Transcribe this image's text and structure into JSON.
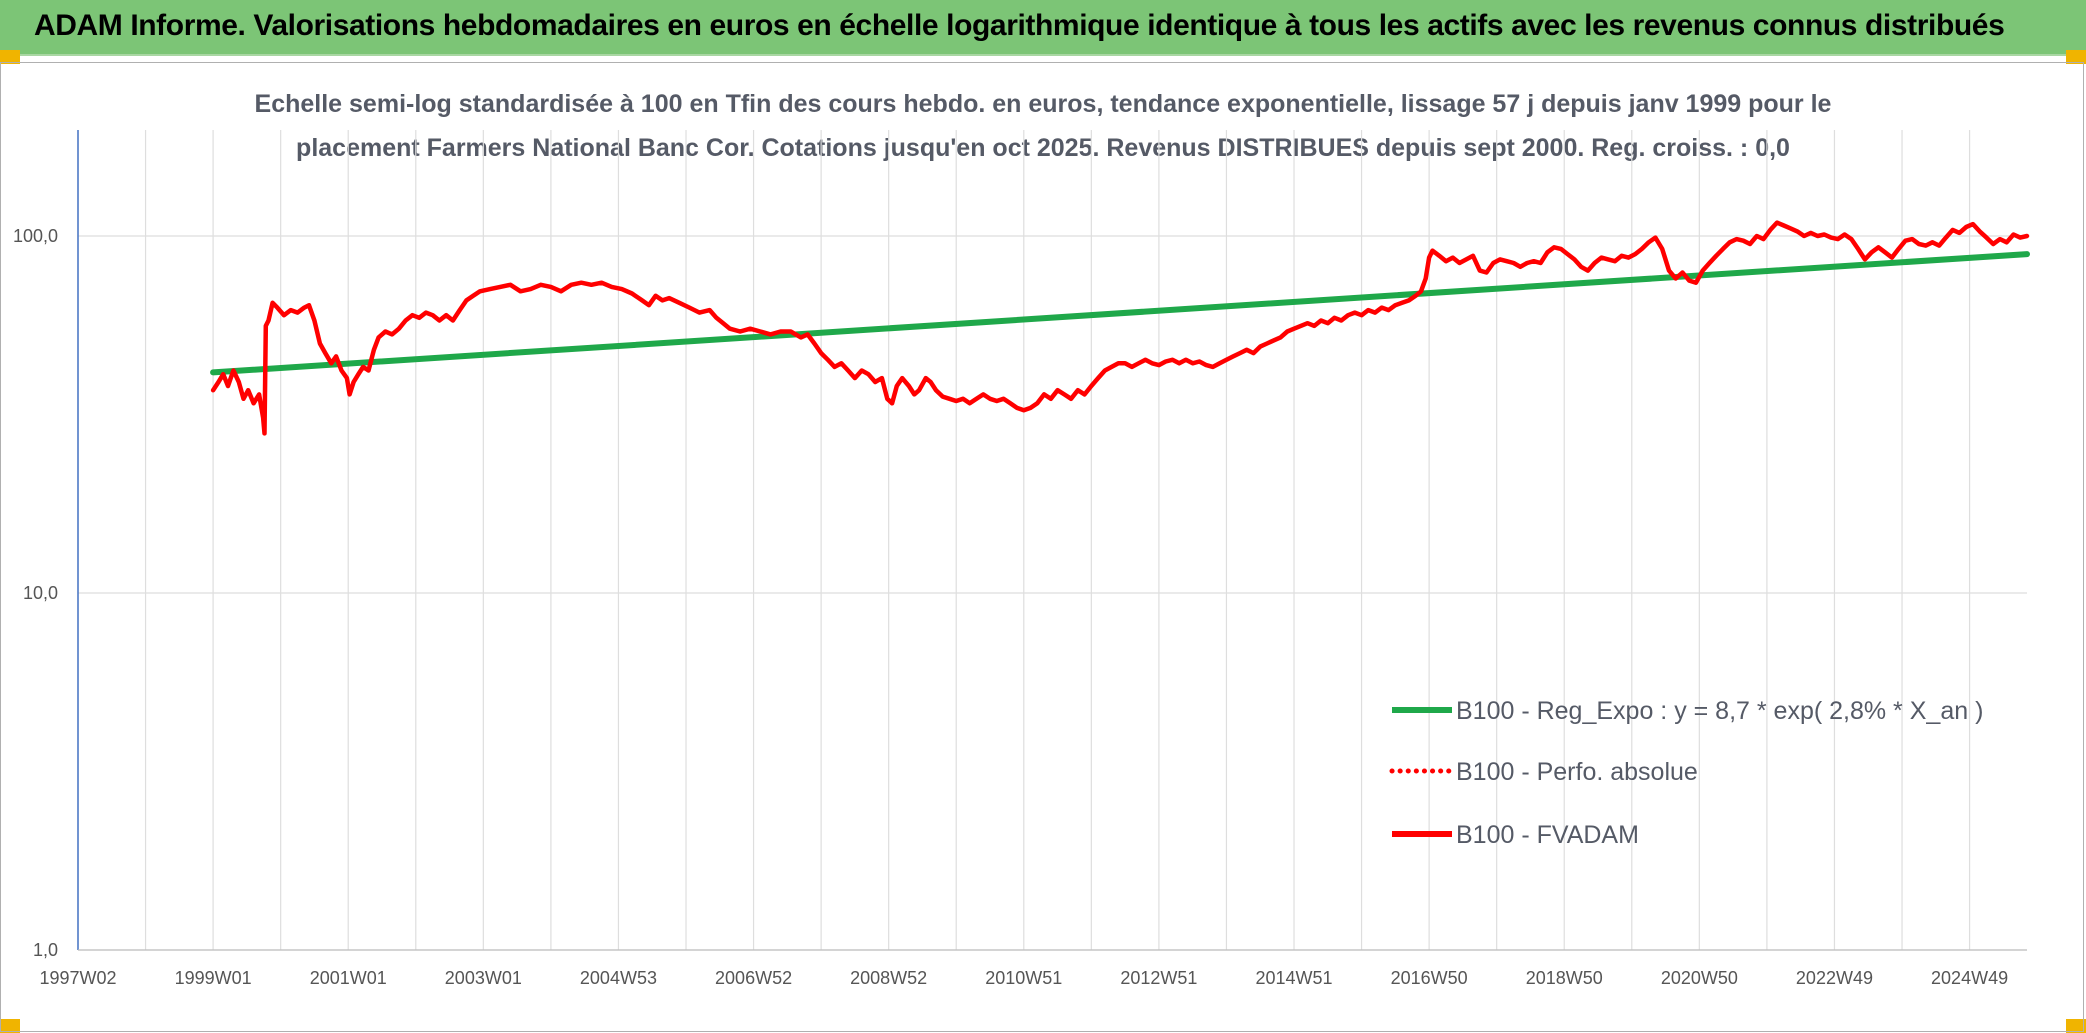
{
  "banner": {
    "title": "ADAM Informe. Valorisations hebdomadaires en euros en échelle logarithmique identique à tous les actifs avec les revenus connus distribués",
    "background_color": "#7cc576",
    "corner_color": "#f0b400"
  },
  "chart_data": {
    "type": "line",
    "title_line1": "Echelle semi-log standardisée à 100 en Tfin des cours hebdo. en euros, tendance exponentielle, lissage 57 j depuis janv 1999 pour le",
    "title_line2": "placement Farmers National Banc Cor. Cotations jusqu'en oct 2025. Revenus DISTRIBUES depuis sept 2000. Reg. croiss. : 0,0",
    "y_scale": "log",
    "ylim": [
      1,
      200
    ],
    "y_ticks": [
      {
        "value": 1,
        "label": "1,0"
      },
      {
        "value": 10,
        "label": "10,0"
      },
      {
        "value": 100,
        "label": "100,0"
      }
    ],
    "x_range": [
      1997.0,
      2025.85
    ],
    "x_ticks": [
      {
        "value": 1997.0,
        "label": "1997W02"
      },
      {
        "value": 1999.0,
        "label": "1999W01"
      },
      {
        "value": 2001.0,
        "label": "2001W01"
      },
      {
        "value": 2003.0,
        "label": "2003W01"
      },
      {
        "value": 2005.0,
        "label": "2004W53"
      },
      {
        "value": 2007.0,
        "label": "2006W52"
      },
      {
        "value": 2009.0,
        "label": "2008W52"
      },
      {
        "value": 2011.0,
        "label": "2010W51"
      },
      {
        "value": 2013.0,
        "label": "2012W51"
      },
      {
        "value": 2015.0,
        "label": "2014W51"
      },
      {
        "value": 2017.0,
        "label": "2016W50"
      },
      {
        "value": 2019.0,
        "label": "2018W50"
      },
      {
        "value": 2021.0,
        "label": "2020W50"
      },
      {
        "value": 2023.0,
        "label": "2022W49"
      },
      {
        "value": 2025.0,
        "label": "2024W49"
      }
    ],
    "grid": true,
    "legend_position": "bottom-right",
    "series": [
      {
        "name": "B100 - Reg_Expo : y = 8,7 * exp( 2,8% *  X_an )",
        "color": "#1fa84a",
        "style": "solid",
        "points": [
          [
            1999.0,
            41.5
          ],
          [
            2025.85,
            89.0
          ]
        ]
      },
      {
        "name": "B100 - Perfo. absolue",
        "color": "#ff0000",
        "style": "dotted",
        "points": []
      },
      {
        "name": "B100 - FVADAM",
        "color": "#ff0000",
        "style": "solid",
        "points": [
          [
            1999.0,
            37
          ],
          [
            1999.08,
            39
          ],
          [
            1999.15,
            41
          ],
          [
            1999.22,
            38
          ],
          [
            1999.3,
            42
          ],
          [
            1999.38,
            39
          ],
          [
            1999.45,
            35
          ],
          [
            1999.52,
            37
          ],
          [
            1999.6,
            34
          ],
          [
            1999.68,
            36
          ],
          [
            1999.74,
            31
          ],
          [
            1999.76,
            28
          ],
          [
            1999.78,
            56
          ],
          [
            1999.82,
            58
          ],
          [
            1999.88,
            65
          ],
          [
            1999.95,
            63
          ],
          [
            2000.05,
            60
          ],
          [
            2000.15,
            62
          ],
          [
            2000.25,
            61
          ],
          [
            2000.35,
            63
          ],
          [
            2000.42,
            64
          ],
          [
            2000.5,
            58
          ],
          [
            2000.58,
            50
          ],
          [
            2000.66,
            47
          ],
          [
            2000.75,
            44
          ],
          [
            2000.82,
            46
          ],
          [
            2000.9,
            42
          ],
          [
            2000.98,
            40
          ],
          [
            2001.02,
            36
          ],
          [
            2001.08,
            39
          ],
          [
            2001.15,
            41
          ],
          [
            2001.22,
            43
          ],
          [
            2001.3,
            42
          ],
          [
            2001.38,
            48
          ],
          [
            2001.45,
            52
          ],
          [
            2001.55,
            54
          ],
          [
            2001.65,
            53
          ],
          [
            2001.75,
            55
          ],
          [
            2001.85,
            58
          ],
          [
            2001.95,
            60
          ],
          [
            2002.05,
            59
          ],
          [
            2002.15,
            61
          ],
          [
            2002.25,
            60
          ],
          [
            2002.35,
            58
          ],
          [
            2002.45,
            60
          ],
          [
            2002.55,
            58
          ],
          [
            2002.65,
            62
          ],
          [
            2002.75,
            66
          ],
          [
            2002.85,
            68
          ],
          [
            2002.95,
            70
          ],
          [
            2003.1,
            71
          ],
          [
            2003.25,
            72
          ],
          [
            2003.4,
            73
          ],
          [
            2003.55,
            70
          ],
          [
            2003.7,
            71
          ],
          [
            2003.85,
            73
          ],
          [
            2004.0,
            72
          ],
          [
            2004.15,
            70
          ],
          [
            2004.3,
            73
          ],
          [
            2004.45,
            74
          ],
          [
            2004.6,
            73
          ],
          [
            2004.75,
            74
          ],
          [
            2004.9,
            72
          ],
          [
            2005.05,
            71
          ],
          [
            2005.2,
            69
          ],
          [
            2005.35,
            66
          ],
          [
            2005.45,
            64
          ],
          [
            2005.55,
            68
          ],
          [
            2005.65,
            66
          ],
          [
            2005.75,
            67
          ],
          [
            2005.9,
            65
          ],
          [
            2006.05,
            63
          ],
          [
            2006.2,
            61
          ],
          [
            2006.35,
            62
          ],
          [
            2006.45,
            59
          ],
          [
            2006.55,
            57
          ],
          [
            2006.65,
            55
          ],
          [
            2006.8,
            54
          ],
          [
            2006.95,
            55
          ],
          [
            2007.1,
            54
          ],
          [
            2007.25,
            53
          ],
          [
            2007.4,
            54
          ],
          [
            2007.55,
            54
          ],
          [
            2007.7,
            52
          ],
          [
            2007.8,
            53
          ],
          [
            2007.9,
            50
          ],
          [
            2008.0,
            47
          ],
          [
            2008.1,
            45
          ],
          [
            2008.2,
            43
          ],
          [
            2008.3,
            44
          ],
          [
            2008.4,
            42
          ],
          [
            2008.5,
            40
          ],
          [
            2008.6,
            42
          ],
          [
            2008.7,
            41
          ],
          [
            2008.8,
            39
          ],
          [
            2008.9,
            40
          ],
          [
            2008.98,
            35
          ],
          [
            2009.05,
            34
          ],
          [
            2009.12,
            38
          ],
          [
            2009.2,
            40
          ],
          [
            2009.3,
            38
          ],
          [
            2009.38,
            36
          ],
          [
            2009.45,
            37
          ],
          [
            2009.55,
            40
          ],
          [
            2009.62,
            39
          ],
          [
            2009.7,
            37
          ],
          [
            2009.8,
            35.5
          ],
          [
            2009.9,
            35
          ],
          [
            2010.0,
            34.5
          ],
          [
            2010.1,
            35
          ],
          [
            2010.2,
            34
          ],
          [
            2010.3,
            35
          ],
          [
            2010.4,
            36
          ],
          [
            2010.5,
            35
          ],
          [
            2010.6,
            34.5
          ],
          [
            2010.7,
            35
          ],
          [
            2010.8,
            34
          ],
          [
            2010.9,
            33
          ],
          [
            2011.0,
            32.5
          ],
          [
            2011.1,
            33
          ],
          [
            2011.2,
            34
          ],
          [
            2011.3,
            36
          ],
          [
            2011.4,
            35
          ],
          [
            2011.5,
            37
          ],
          [
            2011.6,
            36
          ],
          [
            2011.7,
            35
          ],
          [
            2011.8,
            37
          ],
          [
            2011.9,
            36
          ],
          [
            2012.0,
            38
          ],
          [
            2012.1,
            40
          ],
          [
            2012.2,
            42
          ],
          [
            2012.3,
            43
          ],
          [
            2012.4,
            44
          ],
          [
            2012.5,
            44
          ],
          [
            2012.6,
            43
          ],
          [
            2012.7,
            44
          ],
          [
            2012.8,
            45
          ],
          [
            2012.9,
            44
          ],
          [
            2013.0,
            43.5
          ],
          [
            2013.1,
            44.5
          ],
          [
            2013.2,
            45
          ],
          [
            2013.3,
            44
          ],
          [
            2013.4,
            45
          ],
          [
            2013.5,
            44
          ],
          [
            2013.6,
            44.5
          ],
          [
            2013.7,
            43.5
          ],
          [
            2013.8,
            43
          ],
          [
            2013.9,
            44
          ],
          [
            2014.0,
            45
          ],
          [
            2014.1,
            46
          ],
          [
            2014.2,
            47
          ],
          [
            2014.3,
            48
          ],
          [
            2014.4,
            47
          ],
          [
            2014.5,
            49
          ],
          [
            2014.6,
            50
          ],
          [
            2014.7,
            51
          ],
          [
            2014.8,
            52
          ],
          [
            2014.9,
            54
          ],
          [
            2015.0,
            55
          ],
          [
            2015.1,
            56
          ],
          [
            2015.2,
            57
          ],
          [
            2015.3,
            56
          ],
          [
            2015.4,
            58
          ],
          [
            2015.5,
            57
          ],
          [
            2015.6,
            59
          ],
          [
            2015.7,
            58
          ],
          [
            2015.8,
            60
          ],
          [
            2015.9,
            61
          ],
          [
            2016.0,
            60
          ],
          [
            2016.1,
            62
          ],
          [
            2016.2,
            61
          ],
          [
            2016.3,
            63
          ],
          [
            2016.4,
            62
          ],
          [
            2016.5,
            64
          ],
          [
            2016.6,
            65
          ],
          [
            2016.7,
            66
          ],
          [
            2016.8,
            68
          ],
          [
            2016.88,
            70
          ],
          [
            2016.95,
            76
          ],
          [
            2017.0,
            87
          ],
          [
            2017.05,
            91
          ],
          [
            2017.15,
            88
          ],
          [
            2017.25,
            85
          ],
          [
            2017.35,
            87
          ],
          [
            2017.45,
            84
          ],
          [
            2017.55,
            86
          ],
          [
            2017.65,
            88
          ],
          [
            2017.75,
            80
          ],
          [
            2017.85,
            79
          ],
          [
            2017.95,
            84
          ],
          [
            2018.05,
            86
          ],
          [
            2018.15,
            85
          ],
          [
            2018.25,
            84
          ],
          [
            2018.35,
            82
          ],
          [
            2018.45,
            84
          ],
          [
            2018.55,
            85
          ],
          [
            2018.65,
            84
          ],
          [
            2018.75,
            90
          ],
          [
            2018.85,
            93
          ],
          [
            2018.95,
            92
          ],
          [
            2019.05,
            89
          ],
          [
            2019.15,
            86
          ],
          [
            2019.25,
            82
          ],
          [
            2019.35,
            80
          ],
          [
            2019.45,
            84
          ],
          [
            2019.55,
            87
          ],
          [
            2019.65,
            86
          ],
          [
            2019.75,
            85
          ],
          [
            2019.85,
            88
          ],
          [
            2019.95,
            87
          ],
          [
            2020.05,
            89
          ],
          [
            2020.15,
            92
          ],
          [
            2020.25,
            96
          ],
          [
            2020.35,
            99
          ],
          [
            2020.45,
            92
          ],
          [
            2020.55,
            80
          ],
          [
            2020.65,
            76
          ],
          [
            2020.75,
            79
          ],
          [
            2020.85,
            75
          ],
          [
            2020.95,
            74
          ],
          [
            2021.05,
            80
          ],
          [
            2021.15,
            84
          ],
          [
            2021.25,
            88
          ],
          [
            2021.35,
            92
          ],
          [
            2021.45,
            96
          ],
          [
            2021.55,
            98
          ],
          [
            2021.65,
            97
          ],
          [
            2021.75,
            95
          ],
          [
            2021.85,
            100
          ],
          [
            2021.95,
            98
          ],
          [
            2022.05,
            104
          ],
          [
            2022.15,
            109
          ],
          [
            2022.25,
            107
          ],
          [
            2022.35,
            105
          ],
          [
            2022.45,
            103
          ],
          [
            2022.55,
            100
          ],
          [
            2022.65,
            102
          ],
          [
            2022.75,
            100
          ],
          [
            2022.85,
            101
          ],
          [
            2022.95,
            99
          ],
          [
            2023.05,
            98
          ],
          [
            2023.15,
            101
          ],
          [
            2023.25,
            98
          ],
          [
            2023.35,
            92
          ],
          [
            2023.45,
            86
          ],
          [
            2023.55,
            90
          ],
          [
            2023.65,
            93
          ],
          [
            2023.75,
            90
          ],
          [
            2023.85,
            87
          ],
          [
            2023.95,
            92
          ],
          [
            2024.05,
            97
          ],
          [
            2024.15,
            98
          ],
          [
            2024.25,
            95
          ],
          [
            2024.35,
            94
          ],
          [
            2024.45,
            96
          ],
          [
            2024.55,
            94
          ],
          [
            2024.65,
            99
          ],
          [
            2024.75,
            104
          ],
          [
            2024.85,
            102
          ],
          [
            2024.95,
            106
          ],
          [
            2025.05,
            108
          ],
          [
            2025.15,
            103
          ],
          [
            2025.25,
            99
          ],
          [
            2025.35,
            95
          ],
          [
            2025.45,
            98
          ],
          [
            2025.55,
            96
          ],
          [
            2025.65,
            101
          ],
          [
            2025.75,
            99
          ],
          [
            2025.85,
            100
          ]
        ]
      }
    ]
  }
}
